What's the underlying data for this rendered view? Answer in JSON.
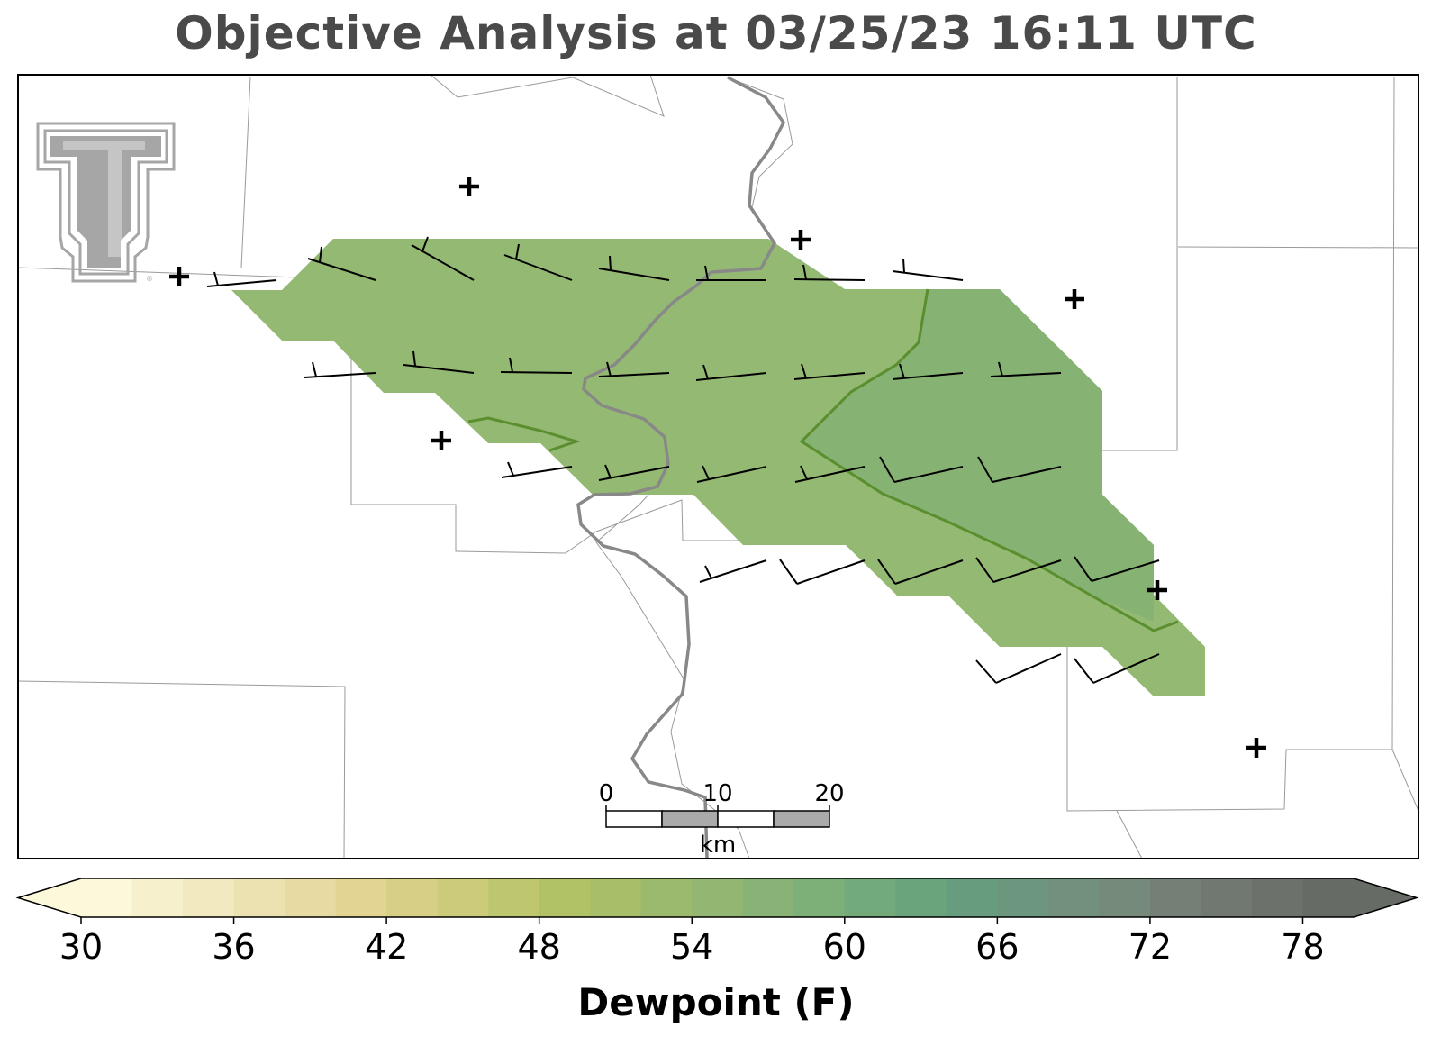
{
  "title": "Objective Analysis at 03/25/23 16:11 UTC",
  "colorbar": {
    "label": "Dewpoint (F)",
    "ticks": [
      "30",
      "36",
      "42",
      "48",
      "54",
      "60",
      "66",
      "72",
      "78"
    ],
    "min": 30,
    "max": 80,
    "step": 2,
    "colors": [
      "#fcf8da",
      "#f6f0cd",
      "#f2e9c1",
      "#ece1b1",
      "#e7daa2",
      "#e2d594",
      "#d8cf86",
      "#cbcb7a",
      "#bec770",
      "#b1c266",
      "#a8be69",
      "#9cba6e",
      "#93b773",
      "#88b276",
      "#7daf79",
      "#72aa7c",
      "#69a47d",
      "#679d7e",
      "#6c977e",
      "#738f7d",
      "#758a7b",
      "#747f76",
      "#717872",
      "#6c716c",
      "#666b66"
    ]
  },
  "scale_bar": {
    "ticks": [
      "0",
      "10",
      "20"
    ],
    "unit": "km"
  },
  "analysis": {
    "fill_color": "#94b972",
    "fill_dewpoint_range": "56-58",
    "fill_dark_color": "#86b373",
    "fill_dark_dewpoint_range": "58-60",
    "contour_color": "#5a8e2e"
  },
  "logo": {
    "name": "Texas Tech Double T",
    "color": "#a6a6a6"
  }
}
